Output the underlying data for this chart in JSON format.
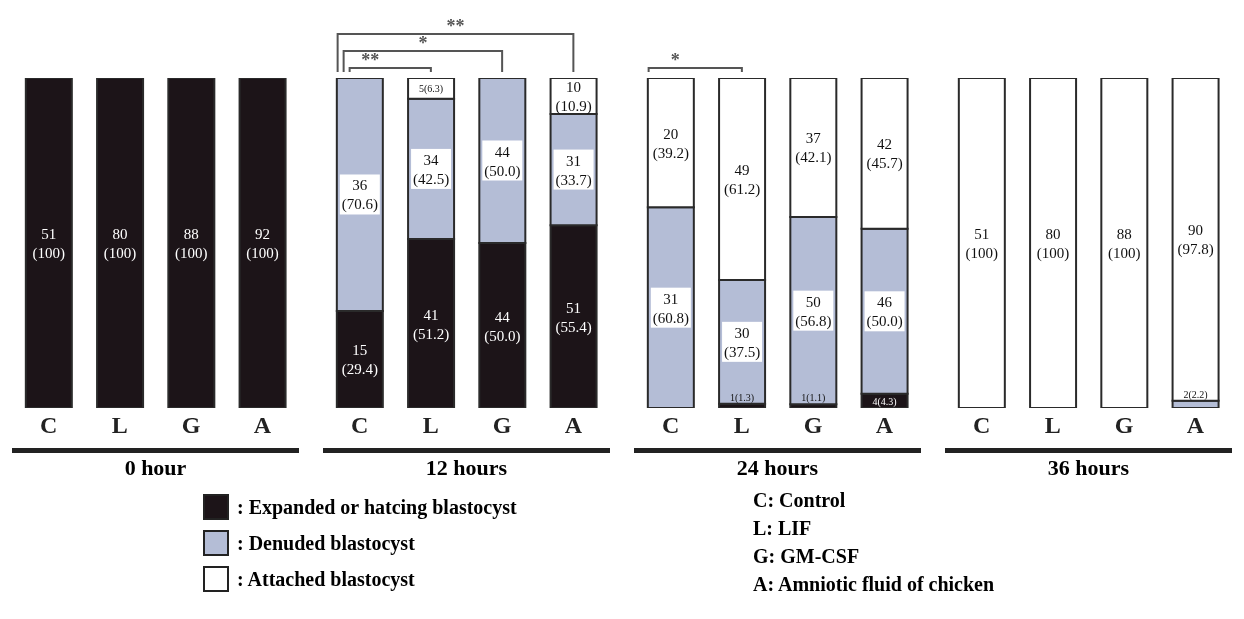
{
  "chart_data": [
    {
      "type": "bar",
      "stacked": true,
      "xlabel": "0 hour",
      "categories": [
        "C",
        "L",
        "G",
        "A"
      ],
      "ylim": [
        0,
        100
      ],
      "tick_labels": "x",
      "legend": "bottom",
      "series": [
        {
          "name": ": Expanded or hatcing blastocyst",
          "color": "#1c1418",
          "values": [
            100,
            100,
            100,
            100
          ],
          "value_labels": [
            "51 (100)",
            "80 (100)",
            "88 (100)",
            "92 (100)"
          ]
        },
        {
          "name": ": Denuded blastocyst",
          "color": "#b4bdd6",
          "values": [
            null,
            null,
            null,
            null
          ],
          "value_labels": [
            null,
            null,
            null,
            null
          ]
        },
        {
          "name": ": Attached blastocyst",
          "color": "#ffffff",
          "values": [
            null,
            null,
            null,
            null
          ],
          "value_labels": [
            null,
            null,
            null,
            null
          ]
        }
      ],
      "annotations": [
        "C: Control",
        "L: LIF",
        "G: GM-CSF",
        "A: Amniotic fluid of chicken"
      ]
    },
    {
      "type": "bar",
      "stacked": true,
      "xlabel": "12 hours",
      "categories": [
        "C",
        "L",
        "G",
        "A"
      ],
      "ylim": [
        0,
        100
      ],
      "tick_labels": "x",
      "series": [
        {
          "color": "#1c1418",
          "values": [
            29.4,
            51.2,
            50.0,
            55.4
          ],
          "value_labels": [
            "15 (29.4)",
            "41 (51.2)",
            "44 (50.0)",
            "51 (55.4)"
          ]
        },
        {
          "color": "#b4bdd6",
          "values": [
            70.6,
            42.5,
            50.0,
            33.7
          ],
          "value_labels": [
            "36 (70.6)",
            "34 (42.5)",
            "44 (50.0)",
            "31 (33.7)"
          ]
        },
        {
          "color": "#ffffff",
          "values": [
            null,
            6.3,
            null,
            10.9
          ],
          "value_labels": [
            null,
            "5(6.3)",
            null,
            "10 (10.9)"
          ]
        }
      ],
      "annotations": [
        "**",
        "*",
        "**"
      ]
    },
    {
      "type": "bar",
      "stacked": true,
      "xlabel": "24 hours",
      "categories": [
        "C",
        "L",
        "G",
        "A"
      ],
      "ylim": [
        0,
        100
      ],
      "tick_labels": "x",
      "series": [
        {
          "color": "#1c1418",
          "values": [
            null,
            1.3,
            1.1,
            4.3
          ],
          "value_labels": [
            null,
            "1(1.3)",
            "1(1.1)",
            "4(4.3)"
          ]
        },
        {
          "color": "#b4bdd6",
          "values": [
            60.8,
            37.5,
            56.8,
            50.0
          ],
          "value_labels": [
            "31 (60.8)",
            "30 (37.5)",
            "50 (56.8)",
            "46 (50.0)"
          ]
        },
        {
          "color": "#ffffff",
          "values": [
            39.2,
            61.2,
            42.1,
            45.7
          ],
          "value_labels": [
            "20 (39.2)",
            "49 (61.2)",
            "37 (42.1)",
            "42 (45.7)"
          ]
        }
      ],
      "annotations": [
        "*"
      ]
    },
    {
      "type": "bar",
      "stacked": true,
      "xlabel": "36 hours",
      "categories": [
        "C",
        "L",
        "G",
        "A"
      ],
      "ylim": [
        0,
        100
      ],
      "tick_labels": "x",
      "series": [
        {
          "color": "#1c1418",
          "values": [
            null,
            null,
            null,
            null
          ],
          "value_labels": [
            null,
            null,
            null,
            null
          ]
        },
        {
          "color": "#b4bdd6",
          "values": [
            null,
            null,
            null,
            2.2
          ],
          "value_labels": [
            null,
            null,
            null,
            "2(2.2)"
          ]
        },
        {
          "color": "#ffffff",
          "values": [
            100,
            100,
            100,
            97.8
          ],
          "value_labels": [
            "51 (100)",
            "80 (100)",
            "88 (100)",
            "90 (97.8)"
          ]
        }
      ]
    }
  ]
}
